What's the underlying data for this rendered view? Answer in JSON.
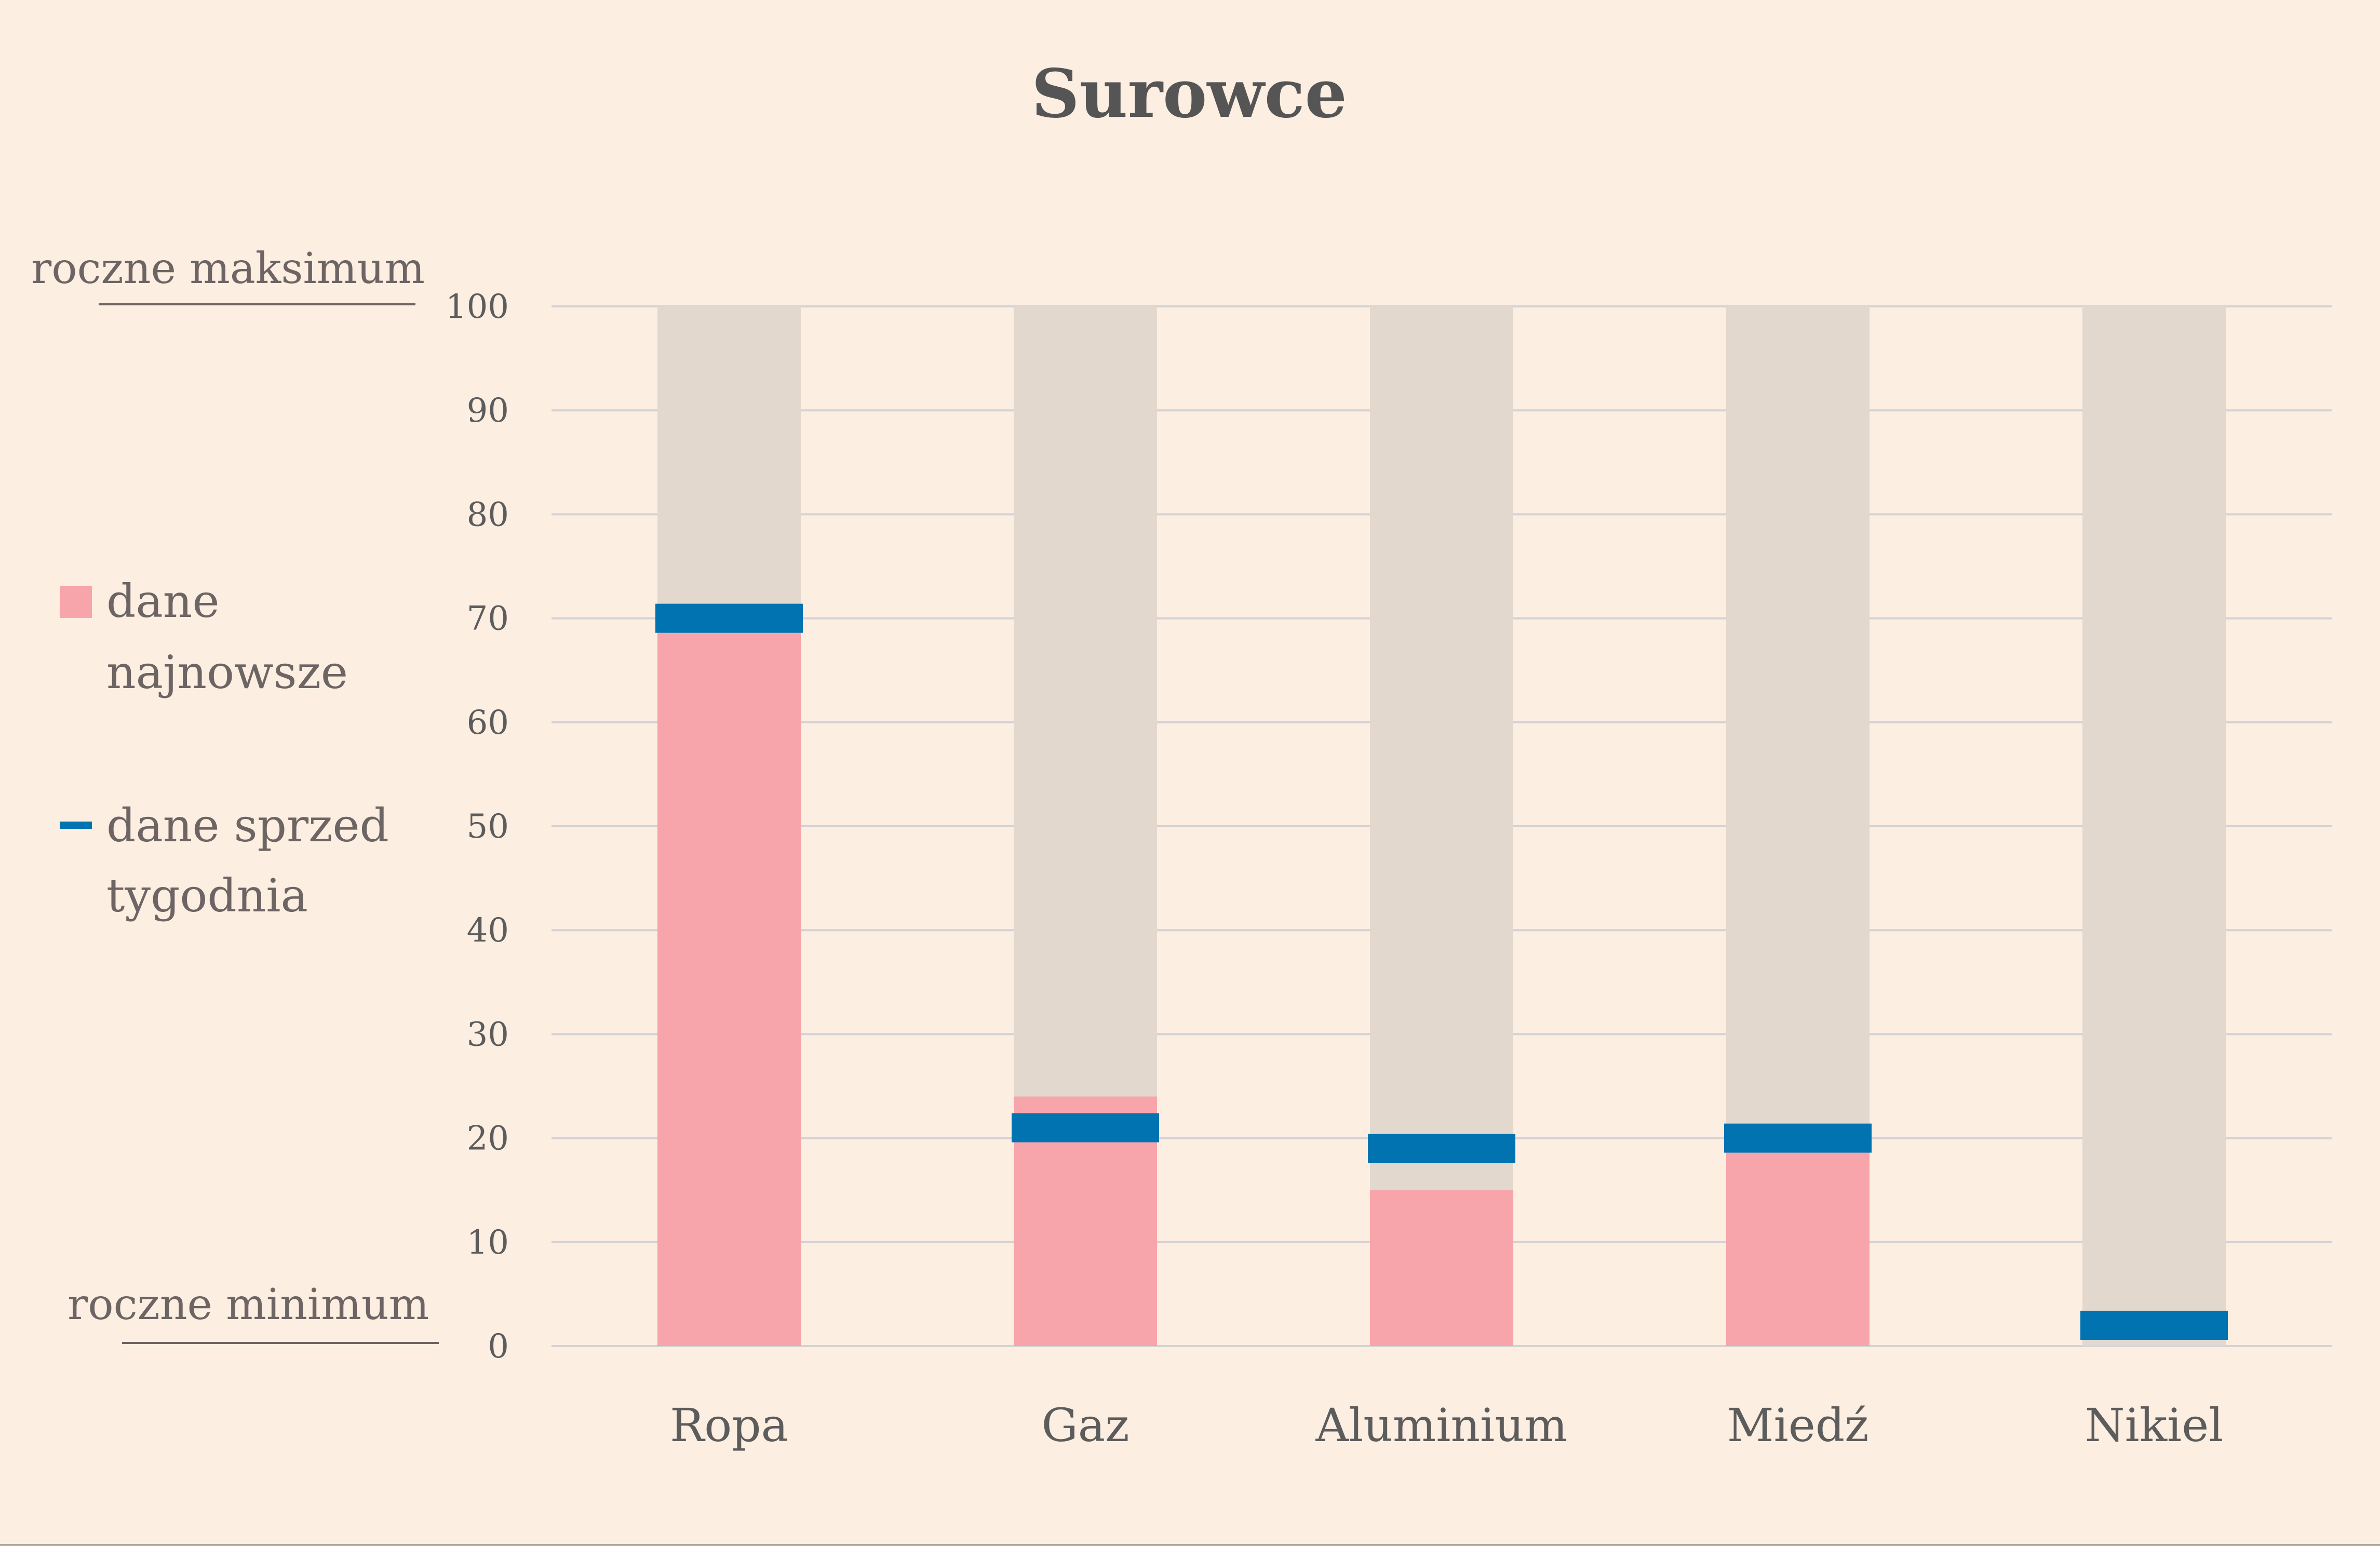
{
  "chart_data": {
    "type": "bar",
    "title": "Surowce",
    "categories": [
      "Ropa",
      "Gaz",
      "Aluminium",
      "Miedź",
      "Nikiel"
    ],
    "series": [
      {
        "name": "dane najnowsze",
        "values": [
          69,
          24,
          15,
          19,
          0
        ]
      },
      {
        "name": "dane sprzed tygodnia",
        "values": [
          70,
          21,
          19,
          20,
          2
        ]
      }
    ],
    "range_max": 100,
    "ylim": [
      0,
      100
    ],
    "yticks": [
      0,
      10,
      20,
      30,
      40,
      50,
      60,
      70,
      80,
      90,
      100
    ],
    "grid": true,
    "legend_position": "left",
    "annotations": {
      "top": "roczne maksimum",
      "bottom": "roczne minimum"
    },
    "legend": {
      "latest_lines": [
        "dane",
        "najnowsze"
      ],
      "week_lines": [
        "dane sprzed",
        "tygodnia"
      ]
    },
    "colors": {
      "background": "#FCEEE1",
      "range_bar": "#E3D8CD",
      "latest": "#F7A5AA",
      "week_ago": "#0073B0",
      "grid": "#D3D3D6",
      "text": "#555555"
    }
  }
}
